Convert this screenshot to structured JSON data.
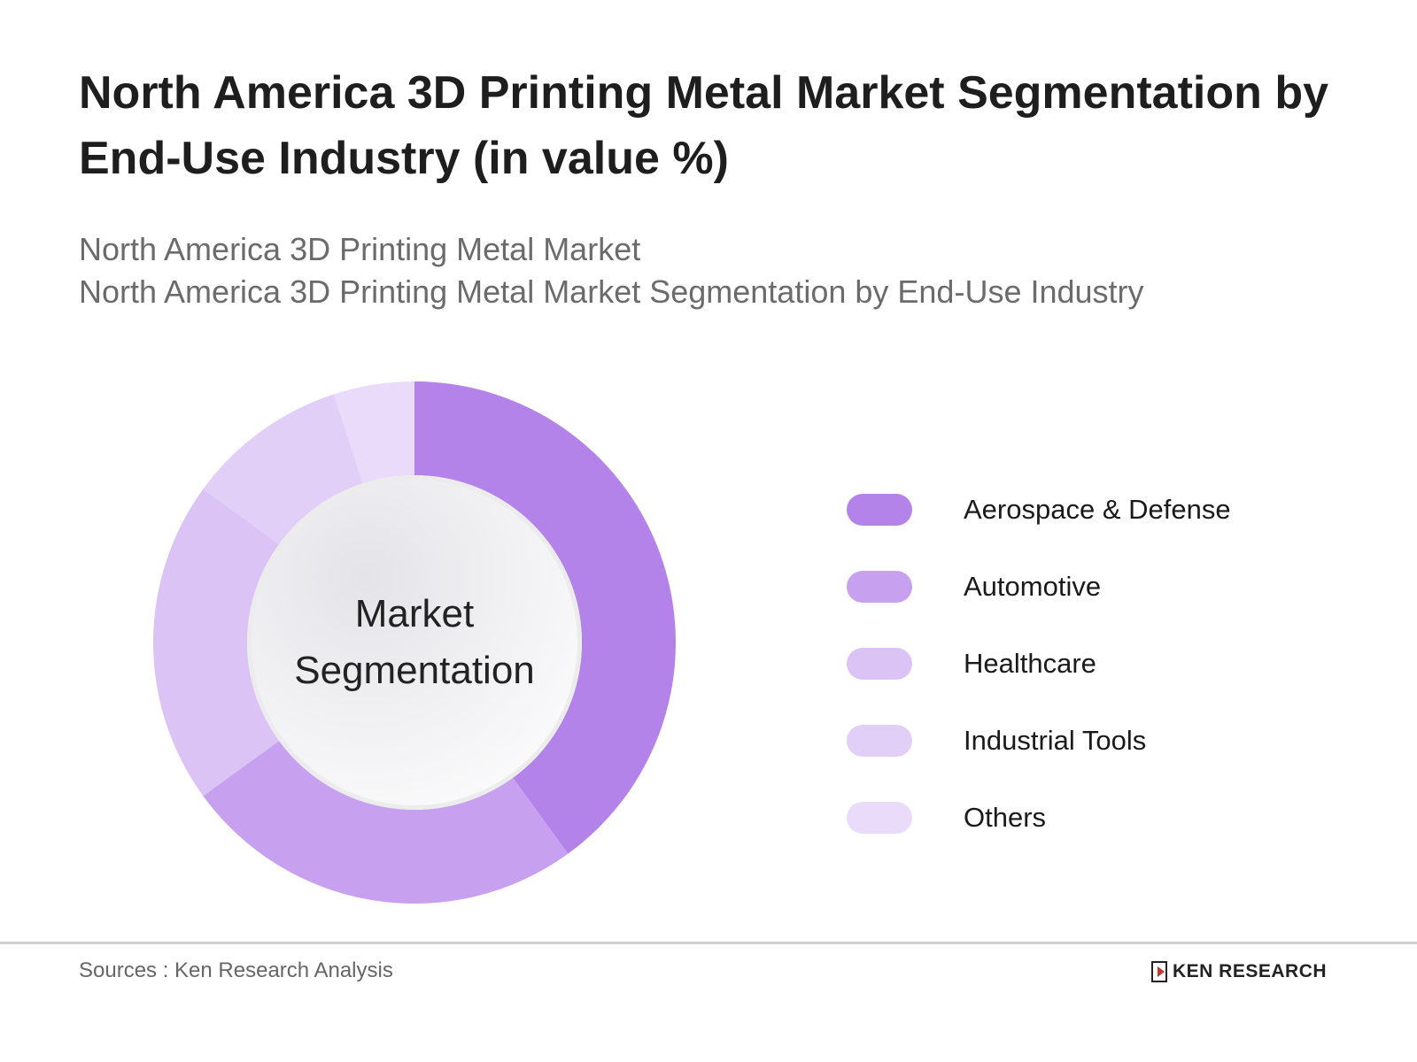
{
  "title": "North America 3D Printing Metal Market Segmentation by End-Use Industry (in value %)",
  "subtitle_lines": [
    "North America 3D Printing Metal Market",
    "North America 3D Printing Metal Market Segmentation by End-Use Industry"
  ],
  "center_label": [
    "Market",
    "Segmentation"
  ],
  "chart_data": {
    "type": "pie",
    "variant": "donut",
    "title": "North America 3D Printing Metal Market Segmentation by End-Use Industry (in value %)",
    "categories": [
      "Aerospace & Defense",
      "Automotive",
      "Healthcare",
      "Industrial Tools",
      "Others"
    ],
    "values": [
      40,
      25,
      20,
      10,
      5
    ],
    "colors": [
      "#b383ea",
      "#c8a0f0",
      "#dbc3f6",
      "#e2cff7",
      "#e9dbf9"
    ],
    "legend_position": "right"
  },
  "footer": {
    "sources": "Sources : Ken Research Analysis",
    "logo_text": "KEN RESEARCH"
  }
}
